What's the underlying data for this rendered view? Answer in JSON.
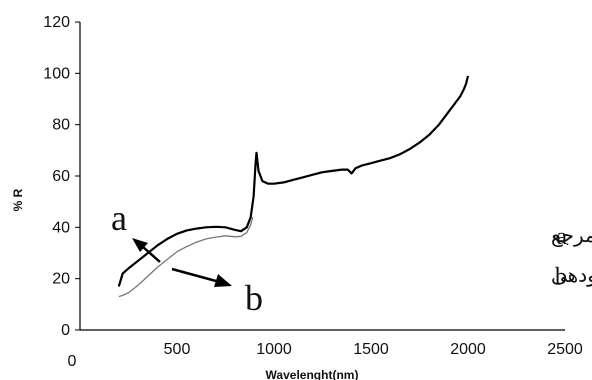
{
  "chart_data": {
    "type": "line",
    "title": "",
    "xlabel": "Wavelenght(nm)",
    "ylabel": "% R",
    "xlim": [
      0,
      2500
    ],
    "ylim": [
      0,
      120
    ],
    "x_ticks": [
      "0",
      "500",
      "1000",
      "1500",
      "2000",
      "2500"
    ],
    "y_ticks": [
      "0",
      "20",
      "40",
      "60",
      "80",
      "100",
      "120"
    ],
    "grid": false,
    "series": [
      {
        "name": "a",
        "color": "#000000",
        "x": [
          200,
          220,
          250,
          300,
          350,
          400,
          450,
          500,
          550,
          600,
          650,
          700,
          750,
          800,
          830,
          860,
          880,
          895,
          905,
          910,
          920,
          940,
          970,
          1000,
          1050,
          1100,
          1150,
          1200,
          1250,
          1300,
          1350,
          1380,
          1400,
          1420,
          1450,
          1500,
          1550,
          1600,
          1650,
          1700,
          1750,
          1800,
          1850,
          1900,
          1930,
          1960,
          1980,
          1990,
          2000
        ],
        "y": [
          17,
          22,
          24,
          27,
          30,
          33,
          35.5,
          37.5,
          38.8,
          39.5,
          40,
          40.2,
          40,
          39,
          38.5,
          40,
          44,
          52,
          65,
          69,
          62,
          58,
          57,
          57,
          57.5,
          58.5,
          59.5,
          60.5,
          61.5,
          62,
          62.5,
          62.5,
          61,
          63,
          64,
          65,
          66,
          67,
          68.5,
          70.5,
          73,
          76,
          80,
          85,
          88,
          91,
          94,
          96,
          99
        ]
      },
      {
        "name": "b",
        "color": "#777777",
        "x": [
          200,
          220,
          250,
          300,
          350,
          400,
          450,
          500,
          550,
          600,
          650,
          700,
          750,
          800,
          830,
          860,
          880,
          890
        ],
        "y": [
          13,
          13.5,
          14.5,
          17.5,
          21,
          24.5,
          27.5,
          30.5,
          32.5,
          34.2,
          35.5,
          36.2,
          36.7,
          36.3,
          36.5,
          38,
          41,
          44
        ]
      }
    ],
    "annotations": {
      "a_label": "a",
      "b_label": "b",
      "legend_lines": [
        {
          "label": "a",
          "text": "نمونه مرجع"
        },
        {
          "label": "b",
          "text": "نمونه پرتودهی"
        }
      ]
    }
  }
}
